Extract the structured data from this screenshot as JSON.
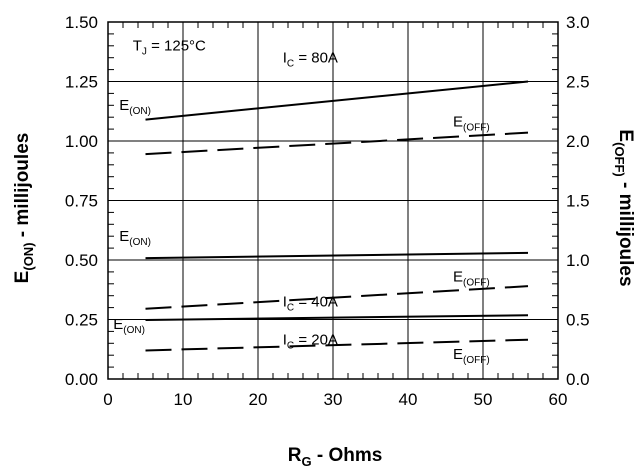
{
  "chart_data": {
    "type": "line",
    "x_axis": {
      "label": "R",
      "label_sub": "G",
      "label_rest": " - Ohms",
      "range": [
        0,
        60
      ],
      "ticks": [
        0,
        10,
        20,
        30,
        40,
        50,
        60
      ]
    },
    "y_left": {
      "label": "E",
      "label_sub": "(ON)",
      "label_rest": " - millijoules",
      "range": [
        0,
        1.5
      ],
      "ticks": [
        "0.00",
        "0.25",
        "0.50",
        "0.75",
        "1.00",
        "1.25",
        "1.50"
      ]
    },
    "y_right": {
      "label": "E",
      "label_sub": "(OFF)",
      "label_rest": " - millijoules",
      "range": [
        0,
        3.0
      ],
      "ticks": [
        "0.0",
        "0.5",
        "1.0",
        "1.5",
        "2.0",
        "2.5",
        "3.0"
      ]
    },
    "grid": true,
    "series": [
      {
        "ic": "80A",
        "kind": "E(ON)",
        "axis": "left",
        "dash": false,
        "x": [
          5,
          56
        ],
        "y": [
          1.09,
          1.25
        ]
      },
      {
        "ic": "80A",
        "kind": "E(OFF)",
        "axis": "right",
        "dash": true,
        "x": [
          5,
          56
        ],
        "y": [
          1.89,
          2.07
        ]
      },
      {
        "ic": "40A",
        "kind": "E(ON)",
        "axis": "left",
        "dash": false,
        "x": [
          5,
          56
        ],
        "y": [
          0.508,
          0.53
        ]
      },
      {
        "ic": "40A",
        "kind": "E(OFF)",
        "axis": "right",
        "dash": true,
        "x": [
          5,
          56
        ],
        "y": [
          0.59,
          0.78
        ]
      },
      {
        "ic": "20A",
        "kind": "E(ON)",
        "axis": "left",
        "dash": false,
        "x": [
          5,
          56
        ],
        "y": [
          0.248,
          0.268
        ]
      },
      {
        "ic": "20A",
        "kind": "E(OFF)",
        "axis": "right",
        "dash": true,
        "x": [
          5,
          56
        ],
        "y": [
          0.24,
          0.33
        ]
      }
    ],
    "annotations": [
      {
        "id": "tj",
        "main": "T",
        "sub": "J",
        "rest": " = 125°C",
        "x": 3.3,
        "y": 1.38
      },
      {
        "id": "ic80",
        "main": "I",
        "sub": "C",
        "rest": " = 80A",
        "x": 23.3,
        "y": 1.33
      },
      {
        "id": "eon80",
        "main": "E",
        "sub": "(ON)",
        "rest": "",
        "x": 1.5,
        "y": 1.13
      },
      {
        "id": "eoff80",
        "main": "E",
        "sub": "(OFF)",
        "rest": "",
        "x": 46.0,
        "y": 1.06
      },
      {
        "id": "eon40",
        "main": "E",
        "sub": "(ON)",
        "rest": "",
        "x": 1.5,
        "y": 0.58
      },
      {
        "id": "ic40",
        "main": "I",
        "sub": "C",
        "rest": " = 40A",
        "x": 23.3,
        "y": 0.305
      },
      {
        "id": "eoff40",
        "main": "E",
        "sub": "(OFF)",
        "rest": "",
        "x": 46.0,
        "y": 0.41
      },
      {
        "id": "eon20",
        "main": "E",
        "sub": "(ON)",
        "rest": "",
        "x": 0.7,
        "y": 0.21
      },
      {
        "id": "ic20",
        "main": "I",
        "sub": "C",
        "rest": " = 20A",
        "x": 23.3,
        "y": 0.145
      },
      {
        "id": "eoff20",
        "main": "E",
        "sub": "(OFF)",
        "rest": "",
        "x": 46.0,
        "y": 0.085
      }
    ]
  }
}
